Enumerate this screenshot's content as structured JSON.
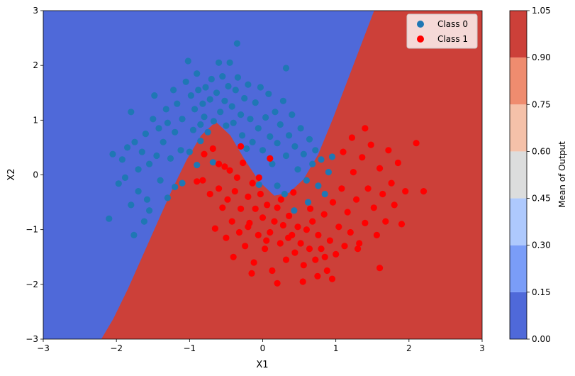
{
  "chart_data": {
    "type": "scatter",
    "title": "",
    "xlabel": "X1",
    "ylabel": "X2",
    "xlim": [
      -3,
      3
    ],
    "ylim": [
      -3,
      3
    ],
    "xticks": [
      "−3",
      "−2",
      "−1",
      "0",
      "1",
      "2",
      "3"
    ],
    "yticks": [
      "−3",
      "−2",
      "−1",
      "0",
      "1",
      "2",
      "3"
    ],
    "grid": false,
    "legend_position": "top-right",
    "background": "contourf decision surface of model output (coolwarm colormap)",
    "colorbar": {
      "label": "Mean of Output",
      "levels": [
        0.0,
        0.15,
        0.3,
        0.45,
        0.6,
        0.75,
        0.9,
        1.05
      ],
      "ticks": [
        "0.00",
        "0.15",
        "0.30",
        "0.45",
        "0.60",
        "0.75",
        "0.90",
        "1.05"
      ],
      "colors": [
        "#4f69d9",
        "#7a9df8",
        "#aec9fd",
        "#dcdddd",
        "#f5c1a9",
        "#ef8c6f",
        "#cc4039"
      ]
    },
    "boundary_x": [
      -2.2,
      -2.0,
      -1.8,
      -1.6,
      -1.4,
      -1.2,
      -1.0,
      -0.8,
      -0.6,
      -0.4,
      -0.2,
      0.0,
      0.2,
      0.4,
      0.6,
      0.8,
      1.0,
      1.2,
      1.4,
      1.6,
      1.8,
      2.0
    ],
    "boundary_y": [
      -3.2,
      -2.75,
      -2.2,
      -1.6,
      -1.0,
      -0.4,
      0.15,
      0.6,
      0.85,
      0.6,
      0.15,
      -0.25,
      -0.5,
      -0.45,
      -0.2,
      0.25,
      0.9,
      1.6,
      2.3,
      3.0,
      3.6,
      4.2
    ],
    "series": [
      {
        "name": "Class 0",
        "color": "#1f77b4",
        "points": [
          [
            -2.05,
            0.38
          ],
          [
            -1.97,
            -0.16
          ],
          [
            -1.88,
            -0.05
          ],
          [
            -1.92,
            0.28
          ],
          [
            -1.85,
            0.5
          ],
          [
            -1.8,
            -0.55
          ],
          [
            -1.76,
            -1.1
          ],
          [
            -1.7,
            0.1
          ],
          [
            -1.75,
            0.6
          ],
          [
            -1.7,
            -0.3
          ],
          [
            -1.65,
            0.42
          ],
          [
            -1.6,
            0.75
          ],
          [
            -1.58,
            -0.45
          ],
          [
            -1.55,
            0.2
          ],
          [
            -1.5,
            1.02
          ],
          [
            -1.48,
            1.45
          ],
          [
            -1.45,
            0.35
          ],
          [
            -1.42,
            0.85
          ],
          [
            -1.4,
            -0.1
          ],
          [
            -1.36,
            0.6
          ],
          [
            -1.32,
            1.2
          ],
          [
            -1.3,
            0.95
          ],
          [
            -1.26,
            0.3
          ],
          [
            -1.22,
            1.55
          ],
          [
            -1.2,
            0.78
          ],
          [
            -1.17,
            1.3
          ],
          [
            -1.12,
            0.45
          ],
          [
            -1.1,
            1.02
          ],
          [
            -1.05,
            1.7
          ],
          [
            -1.02,
            2.08
          ],
          [
            -0.98,
            1.45
          ],
          [
            -0.95,
            0.82
          ],
          [
            -0.93,
            1.2
          ],
          [
            -0.9,
            1.85
          ],
          [
            -0.88,
            1.55
          ],
          [
            -0.85,
            0.62
          ],
          [
            -0.82,
            1.3
          ],
          [
            -0.8,
            1.06
          ],
          [
            -0.78,
            1.6
          ],
          [
            -0.75,
            0.78
          ],
          [
            -0.72,
            1.38
          ],
          [
            -0.7,
            1.75
          ],
          [
            -0.67,
            0.98
          ],
          [
            -0.63,
            1.5
          ],
          [
            -0.6,
            2.05
          ],
          [
            -0.58,
            1.15
          ],
          [
            -0.55,
            1.8
          ],
          [
            -0.52,
            1.35
          ],
          [
            -0.5,
            0.9
          ],
          [
            -0.47,
            1.62
          ],
          [
            -0.45,
            2.05
          ],
          [
            -0.42,
            1.25
          ],
          [
            -0.4,
            0.95
          ],
          [
            -0.37,
            1.55
          ],
          [
            -0.34,
            1.78
          ],
          [
            -0.3,
            1.1
          ],
          [
            -0.28,
            0.72
          ],
          [
            -0.25,
            1.4
          ],
          [
            -0.22,
            0.48
          ],
          [
            -0.2,
            1.65
          ],
          [
            -0.17,
            1.02
          ],
          [
            -0.14,
            0.6
          ],
          [
            -0.1,
            1.32
          ],
          [
            -0.06,
            0.85
          ],
          [
            -0.03,
            1.6
          ],
          [
            0.0,
            0.45
          ],
          [
            0.04,
            1.05
          ],
          [
            0.08,
            1.48
          ],
          [
            0.1,
            0.7
          ],
          [
            0.13,
            0.2
          ],
          [
            0.17,
            1.15
          ],
          [
            0.2,
            0.58
          ],
          [
            0.24,
            0.92
          ],
          [
            0.28,
            1.35
          ],
          [
            0.32,
            0.35
          ],
          [
            0.36,
            0.72
          ],
          [
            0.4,
            1.1
          ],
          [
            0.44,
            0.52
          ],
          [
            0.48,
            0.1
          ],
          [
            0.52,
            0.85
          ],
          [
            0.56,
            0.38
          ],
          [
            0.6,
            -0.1
          ],
          [
            0.64,
            0.65
          ],
          [
            0.68,
            0.2
          ],
          [
            0.72,
            0.45
          ],
          [
            0.76,
            -0.2
          ],
          [
            0.8,
            0.28
          ],
          [
            0.85,
            -0.35
          ],
          [
            0.9,
            0.05
          ],
          [
            0.95,
            0.33
          ],
          [
            0.62,
            -0.5
          ],
          [
            0.43,
            -0.65
          ],
          [
            0.3,
            -0.35
          ],
          [
            0.2,
            -0.2
          ],
          [
            -0.05,
            -0.18
          ],
          [
            -0.85,
            0.92
          ],
          [
            -1.0,
            0.42
          ],
          [
            -1.2,
            -0.22
          ],
          [
            -1.3,
            -0.42
          ],
          [
            -1.55,
            -0.65
          ],
          [
            -1.62,
            -0.85
          ],
          [
            -2.1,
            -0.8
          ],
          [
            -1.8,
            1.15
          ],
          [
            -0.35,
            2.4
          ],
          [
            0.32,
            1.95
          ],
          [
            -0.68,
            0.23
          ],
          [
            -0.9,
            0.18
          ],
          [
            -1.1,
            -0.15
          ]
        ]
      },
      {
        "name": "Class 1",
        "color": "#ff0000",
        "points": [
          [
            -0.8,
            0.38
          ],
          [
            -0.82,
            -0.1
          ],
          [
            -0.72,
            -0.35
          ],
          [
            -0.68,
            0.48
          ],
          [
            -0.65,
            -0.98
          ],
          [
            -0.6,
            -0.25
          ],
          [
            -0.55,
            -0.6
          ],
          [
            -0.52,
            0.15
          ],
          [
            -0.5,
            -1.15
          ],
          [
            -0.48,
            -0.45
          ],
          [
            -0.45,
            0.08
          ],
          [
            -0.42,
            -0.85
          ],
          [
            -0.4,
            -1.5
          ],
          [
            -0.38,
            -0.3
          ],
          [
            -0.35,
            -0.05
          ],
          [
            -0.32,
            -1.05
          ],
          [
            -0.3,
            -0.62
          ],
          [
            -0.27,
            0.22
          ],
          [
            -0.24,
            -1.3
          ],
          [
            -0.2,
            -0.4
          ],
          [
            -0.18,
            -0.88
          ],
          [
            -0.14,
            -0.15
          ],
          [
            -0.12,
            -1.6
          ],
          [
            -0.1,
            -0.62
          ],
          [
            -0.06,
            -1.1
          ],
          [
            -0.03,
            -0.35
          ],
          [
            0.0,
            -0.78
          ],
          [
            0.03,
            -1.35
          ],
          [
            0.06,
            -0.55
          ],
          [
            0.1,
            -1.05
          ],
          [
            0.13,
            -1.75
          ],
          [
            0.16,
            -0.85
          ],
          [
            0.2,
            -0.6
          ],
          [
            0.24,
            -1.25
          ],
          [
            0.28,
            -0.92
          ],
          [
            0.32,
            -1.55
          ],
          [
            0.36,
            -0.75
          ],
          [
            0.4,
            -1.1
          ],
          [
            0.44,
            -1.42
          ],
          [
            0.48,
            -0.95
          ],
          [
            0.52,
            -1.25
          ],
          [
            0.56,
            -1.65
          ],
          [
            0.6,
            -1.0
          ],
          [
            0.64,
            -1.35
          ],
          [
            0.68,
            -0.85
          ],
          [
            0.72,
            -1.55
          ],
          [
            0.76,
            -1.1
          ],
          [
            0.8,
            -1.35
          ],
          [
            0.84,
            -0.72
          ],
          [
            0.88,
            -1.75
          ],
          [
            0.92,
            -1.2
          ],
          [
            0.96,
            -0.5
          ],
          [
            1.0,
            -1.45
          ],
          [
            1.04,
            -0.95
          ],
          [
            1.08,
            -0.25
          ],
          [
            1.12,
            -1.3
          ],
          [
            1.16,
            -0.68
          ],
          [
            1.2,
            -1.05
          ],
          [
            1.24,
            0.05
          ],
          [
            1.28,
            -0.45
          ],
          [
            1.32,
            -1.25
          ],
          [
            1.36,
            0.32
          ],
          [
            1.4,
            -0.88
          ],
          [
            1.44,
            -0.25
          ],
          [
            1.48,
            0.55
          ],
          [
            1.52,
            -0.6
          ],
          [
            1.56,
            -1.1
          ],
          [
            1.6,
            0.12
          ],
          [
            1.64,
            -0.35
          ],
          [
            1.68,
            -0.85
          ],
          [
            1.72,
            0.45
          ],
          [
            1.76,
            -0.15
          ],
          [
            1.8,
            -0.55
          ],
          [
            1.85,
            0.22
          ],
          [
            1.9,
            -0.9
          ],
          [
            1.95,
            -0.3
          ],
          [
            2.1,
            0.58
          ],
          [
            2.2,
            -0.3
          ],
          [
            1.4,
            0.85
          ],
          [
            1.22,
            0.68
          ],
          [
            0.95,
            -1.9
          ],
          [
            0.75,
            -1.85
          ],
          [
            0.55,
            -1.95
          ],
          [
            0.2,
            -1.98
          ],
          [
            -0.15,
            -1.8
          ],
          [
            -0.05,
            -0.05
          ],
          [
            -0.3,
            0.52
          ],
          [
            -0.6,
            0.2
          ],
          [
            -0.9,
            -0.12
          ],
          [
            0.1,
            0.3
          ],
          [
            0.42,
            -0.32
          ],
          [
            0.25,
            -0.45
          ],
          [
            1.6,
            -1.7
          ],
          [
            1.1,
            0.42
          ],
          [
            -0.2,
            -0.95
          ],
          [
            0.05,
            -1.2
          ],
          [
            0.35,
            -1.15
          ],
          [
            0.65,
            -0.62
          ],
          [
            0.85,
            -1.5
          ],
          [
            1.3,
            -1.35
          ]
        ]
      }
    ]
  }
}
